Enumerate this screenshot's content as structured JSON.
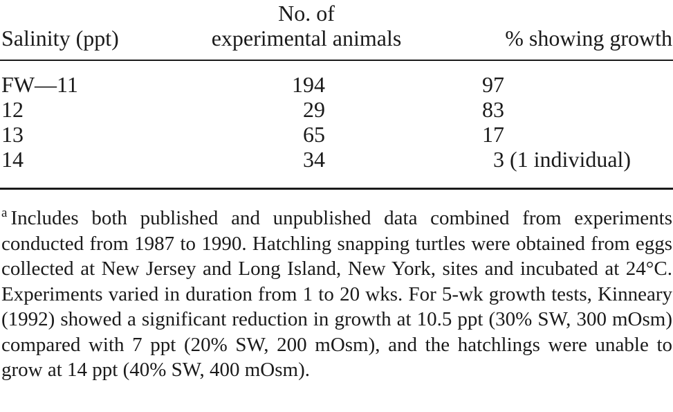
{
  "table": {
    "headers": {
      "salinity": "Salinity (ppt)",
      "animals_line1": "No. of",
      "animals_line2": "experimental animals",
      "growth": "% showing growth"
    },
    "rows": [
      {
        "salinity": "FW—11",
        "animals": "194",
        "growth": "97"
      },
      {
        "salinity": "12",
        "animals": "29",
        "growth": "83"
      },
      {
        "salinity": "13",
        "animals": "65",
        "growth": "17"
      },
      {
        "salinity": "14",
        "animals": "34",
        "growth": "  3 (1 individual)"
      }
    ]
  },
  "footnote": {
    "marker": "a",
    "text": "Includes both published and unpublished data combined from experiments conducted from 1987 to 1990. Hatchling snapping turtles were obtained from eggs collected at New Jersey and Long Island, New York, sites and incubated at 24°C. Experiments varied in duration from 1 to 20 wks. For 5-wk growth tests, Kinneary (1992) showed a significant reduction in growth at 10.5 ppt (30% SW, 300 mOsm) compared with 7 ppt (20% SW, 200 mOsm), and the hatchlings were unable to grow at 14 ppt (40% SW, 400 mOsm)."
  }
}
